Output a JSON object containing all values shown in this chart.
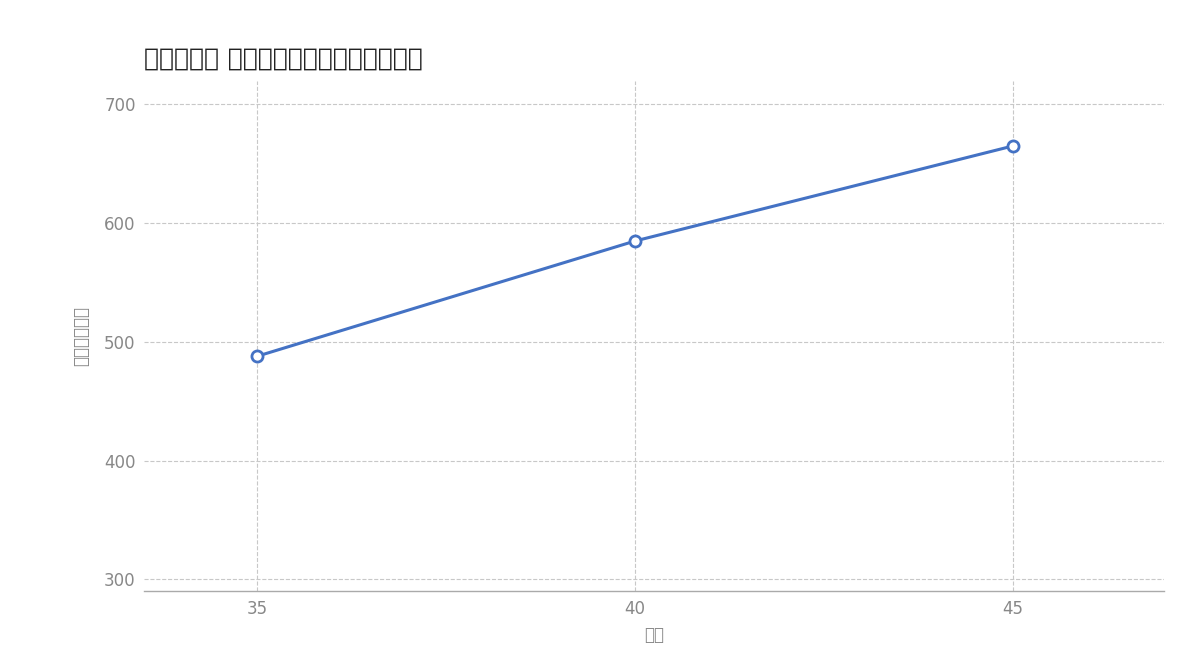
{
  "title": "山崎製パン ルートドライバーの年収推移",
  "x_values": [
    35,
    40,
    45
  ],
  "y_values": [
    488,
    585,
    665
  ],
  "x_label": "年齢",
  "y_label": "年収（万円）",
  "x_ticks": [
    35,
    40,
    45
  ],
  "y_ticks": [
    300,
    400,
    500,
    600,
    700
  ],
  "y_lim": [
    290,
    720
  ],
  "x_lim": [
    33.5,
    47
  ],
  "line_color": "#4472C4",
  "marker_color": "#4472C4",
  "grid_color": "#C8C8C8",
  "background_color": "#FFFFFF",
  "title_fontsize": 18,
  "label_fontsize": 12,
  "tick_fontsize": 12,
  "tick_color": "#888888",
  "title_color": "#222222"
}
